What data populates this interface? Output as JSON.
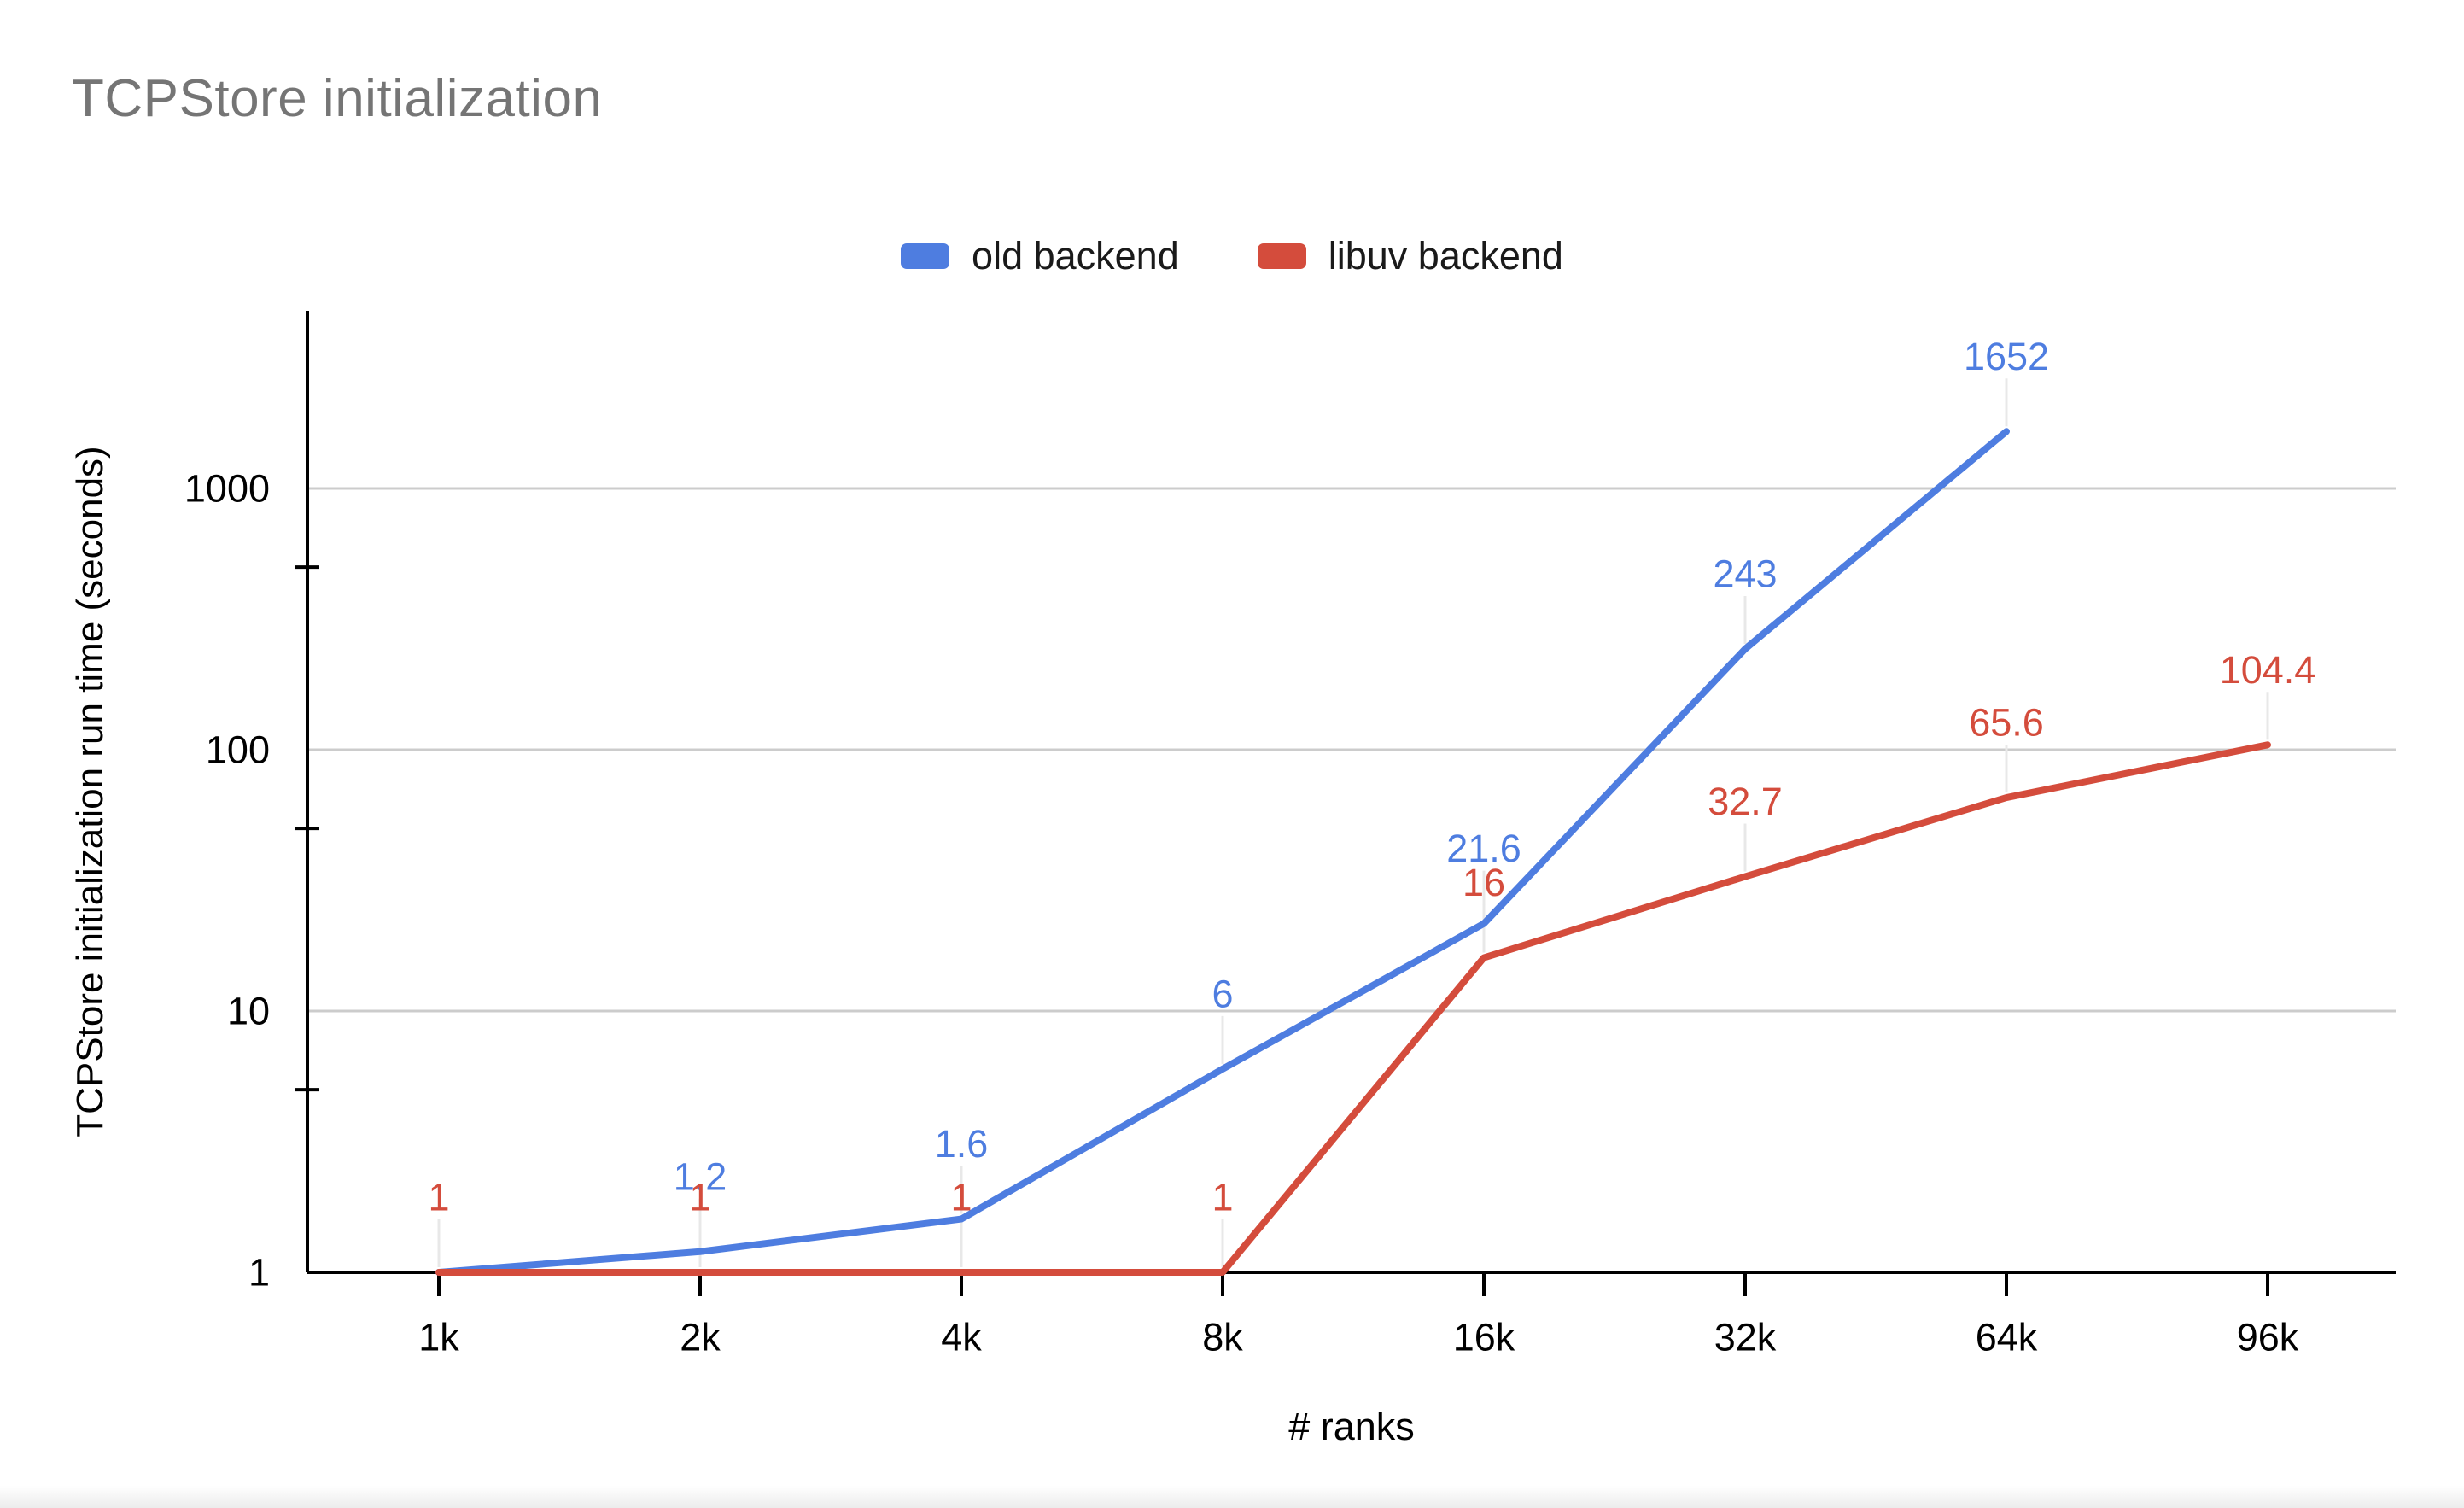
{
  "window": {
    "background": "#ffffff",
    "footer_bar_color": "#ececec"
  },
  "chart": {
    "title": "TCPStore initialization",
    "title_color": "#757575"
  },
  "chart_data": {
    "type": "line",
    "title": "TCPStore initialization",
    "xlabel": "# ranks",
    "ylabel": "TCPStore initialization run time (seconds)",
    "categories": [
      "1k",
      "2k",
      "4k",
      "8k",
      "16k",
      "32k",
      "64k",
      "96k"
    ],
    "series": [
      {
        "name": "old backend",
        "color": "#4e7de0",
        "values": [
          1,
          1.2,
          1.6,
          6,
          21.6,
          243,
          1652,
          null
        ],
        "data_labels": [
          "",
          "1.2",
          "1.6",
          "6",
          "21.6",
          "243",
          "1652",
          ""
        ]
      },
      {
        "name": "libuv backend",
        "color": "#d44c3c",
        "values": [
          1,
          1,
          1,
          1,
          16,
          32.7,
          65.6,
          104.4
        ],
        "data_labels": [
          "1",
          "1",
          "1",
          "1",
          "16",
          "32.7",
          "65.6",
          "104.4"
        ]
      }
    ],
    "y_axis": {
      "scale": "log",
      "tick_labels": [
        "1",
        "10",
        "100",
        "1000"
      ],
      "tick_values": [
        1,
        10,
        100,
        1000
      ],
      "minor_tick_values": [
        5,
        50,
        500,
        5000
      ],
      "range": [
        1,
        4800
      ]
    },
    "x_axis": {
      "type": "category"
    },
    "legend_position": "top",
    "grid": true,
    "styles": {
      "grid_color": "#cccccc",
      "axis_color": "#000000",
      "leader_color": "#e8e8e8",
      "tick_label_color": "#000000",
      "data_label_font_size": 45,
      "tick_label_font_size": 45
    }
  }
}
